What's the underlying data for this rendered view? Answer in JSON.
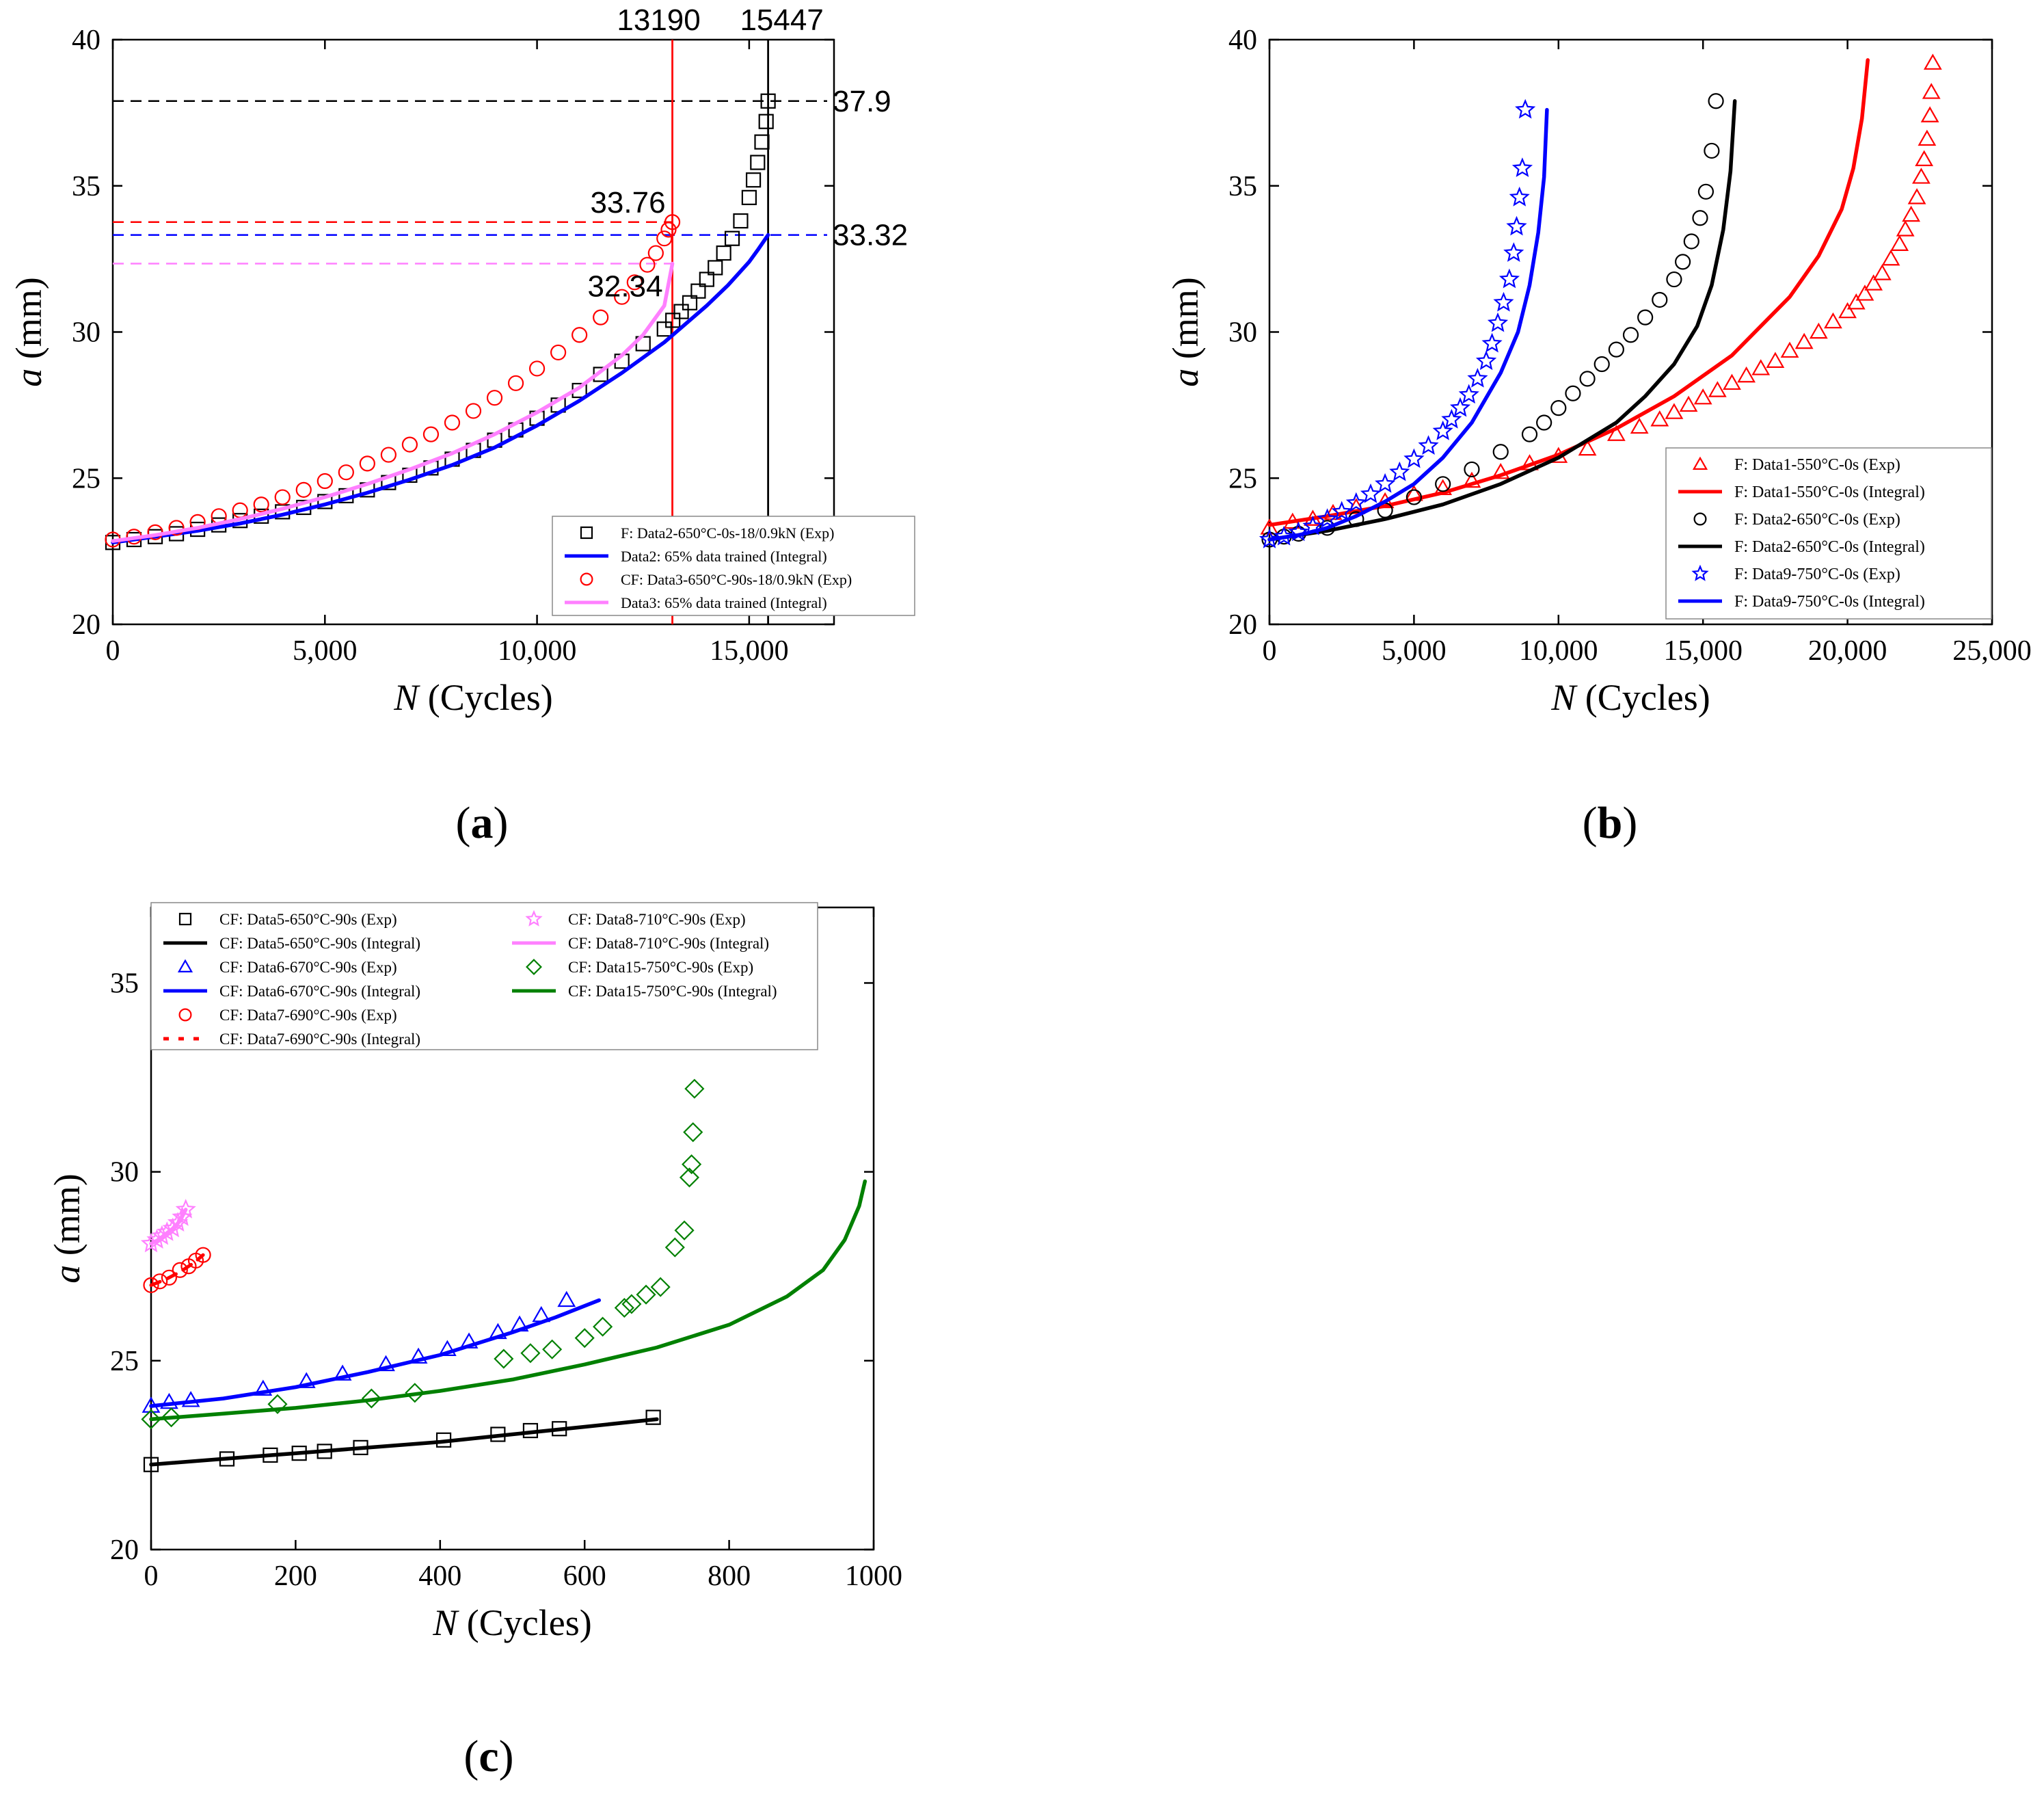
{
  "chart_data": [
    {
      "panel": "(a)",
      "type": "line",
      "xlabel_italic": "N",
      "xlabel_rest": " (Cycles)",
      "ylabel_italic": "a",
      "ylabel_rest": " (mm)",
      "xlim": [
        0,
        17000
      ],
      "ylim": [
        20,
        40
      ],
      "xticks": [
        0,
        5000,
        10000,
        15000
      ],
      "xtick_labels": [
        "0",
        "5,000",
        "10,000",
        "15,000"
      ],
      "yticks": [
        20,
        25,
        30,
        35,
        40
      ],
      "grid": false,
      "legend_position": "bottom-right",
      "series": [
        {
          "name": "F: Data2-650°C-0s-18/0.9kN (Exp)",
          "kind": "marker",
          "marker": "square",
          "color": "#000000",
          "x": [
            0,
            500,
            1000,
            1500,
            2000,
            2500,
            3000,
            3500,
            4000,
            4500,
            5000,
            5500,
            6000,
            6500,
            7000,
            7500,
            8000,
            8500,
            9000,
            9500,
            10000,
            10500,
            11000,
            11500,
            12000,
            12500,
            13000,
            13200,
            13400,
            13600,
            13800,
            14000,
            14200,
            14400,
            14600,
            14800,
            15000,
            15100,
            15200,
            15300,
            15400,
            15447
          ],
          "y": [
            22.8,
            22.9,
            23.0,
            23.1,
            23.25,
            23.4,
            23.55,
            23.7,
            23.85,
            24.0,
            24.2,
            24.4,
            24.6,
            24.85,
            25.1,
            25.35,
            25.65,
            25.95,
            26.3,
            26.65,
            27.05,
            27.5,
            28.0,
            28.55,
            29.0,
            29.6,
            30.1,
            30.4,
            30.7,
            31.0,
            31.4,
            31.8,
            32.2,
            32.7,
            33.2,
            33.8,
            34.6,
            35.2,
            35.8,
            36.5,
            37.2,
            37.9
          ]
        },
        {
          "name": "Data2: 65% data trained (Integral)",
          "kind": "line",
          "color": "#0000ff",
          "x": [
            0,
            1000,
            2000,
            3000,
            4000,
            5000,
            6000,
            7000,
            8000,
            9000,
            10000,
            11000,
            12000,
            13000,
            14000,
            14500,
            15000,
            15200,
            15447
          ],
          "y": [
            22.8,
            23.0,
            23.2,
            23.45,
            23.75,
            24.1,
            24.5,
            24.95,
            25.45,
            26.05,
            26.8,
            27.65,
            28.6,
            29.65,
            30.9,
            31.6,
            32.4,
            32.8,
            33.32
          ]
        },
        {
          "name": "CF: Data3-650°C-90s-18/0.9kN (Exp)",
          "kind": "marker",
          "marker": "circle",
          "color": "#ff0000",
          "x": [
            0,
            500,
            1000,
            1500,
            2000,
            2500,
            3000,
            3500,
            4000,
            4500,
            5000,
            5500,
            6000,
            6500,
            7000,
            7500,
            8000,
            8500,
            9000,
            9500,
            10000,
            10500,
            11000,
            11500,
            12000,
            12300,
            12600,
            12800,
            13000,
            13100,
            13190
          ],
          "y": [
            22.9,
            23.0,
            23.15,
            23.3,
            23.5,
            23.7,
            23.9,
            24.1,
            24.35,
            24.6,
            24.9,
            25.2,
            25.5,
            25.8,
            26.15,
            26.5,
            26.9,
            27.3,
            27.75,
            28.25,
            28.75,
            29.3,
            29.9,
            30.5,
            31.2,
            31.7,
            32.3,
            32.7,
            33.2,
            33.5,
            33.76
          ]
        },
        {
          "name": "Data3: 65% data trained (Integral)",
          "kind": "line",
          "color": "#ff80ff",
          "x": [
            0,
            1000,
            2000,
            3000,
            4000,
            5000,
            6000,
            7000,
            8000,
            9000,
            10000,
            11000,
            12000,
            12500,
            13000,
            13190
          ],
          "y": [
            22.85,
            23.05,
            23.3,
            23.6,
            23.95,
            24.35,
            24.8,
            25.3,
            25.85,
            26.5,
            27.25,
            28.1,
            29.2,
            29.9,
            30.9,
            32.34
          ]
        }
      ],
      "vlines": [
        {
          "x": 13190,
          "label": "13190",
          "color": "#ff0000"
        },
        {
          "x": 15447,
          "label": "15447",
          "color": "#000000"
        }
      ],
      "hlines": [
        {
          "y": 37.9,
          "label": "37.9",
          "color": "#000000"
        },
        {
          "y": 33.76,
          "label": "33.76",
          "color": "#ff0000"
        },
        {
          "y": 33.32,
          "label": "33.32",
          "color": "#0000ff"
        },
        {
          "y": 32.34,
          "label": "32.34",
          "color": "#ff80ff"
        }
      ]
    },
    {
      "panel": "(b)",
      "type": "line",
      "xlabel_italic": "N",
      "xlabel_rest": " (Cycles)",
      "ylabel_italic": "a",
      "ylabel_rest": " (mm)",
      "xlim": [
        0,
        25000
      ],
      "ylim": [
        20,
        40
      ],
      "xticks": [
        0,
        5000,
        10000,
        15000,
        20000,
        25000
      ],
      "xtick_labels": [
        "0",
        "5,000",
        "10,000",
        "15,000",
        "20,000",
        "25,000"
      ],
      "yticks": [
        20,
        25,
        30,
        35,
        40
      ],
      "grid": false,
      "legend_position": "right",
      "series": [
        {
          "name": "F: Data1-550°C-0s (Exp)",
          "kind": "marker",
          "marker": "triangle",
          "color": "#ff0000",
          "x": [
            0,
            800,
            1500,
            2200,
            3000,
            4000,
            5000,
            6000,
            7000,
            8000,
            9000,
            10000,
            11000,
            12000,
            12800,
            13500,
            14000,
            14500,
            15000,
            15500,
            16000,
            16500,
            17000,
            17500,
            18000,
            18500,
            19000,
            19500,
            20000,
            20300,
            20600,
            20900,
            21200,
            21500,
            21800,
            22000,
            22200,
            22400,
            22550,
            22650,
            22750,
            22850,
            22900,
            22950
          ],
          "y": [
            23.3,
            23.5,
            23.6,
            23.8,
            24.0,
            24.2,
            24.45,
            24.65,
            24.9,
            25.2,
            25.5,
            25.75,
            26.0,
            26.5,
            26.75,
            27.0,
            27.25,
            27.5,
            27.75,
            28.0,
            28.25,
            28.5,
            28.75,
            29.0,
            29.35,
            29.65,
            30.0,
            30.35,
            30.7,
            31.0,
            31.3,
            31.65,
            32.0,
            32.5,
            33.0,
            33.5,
            34.0,
            34.6,
            35.3,
            35.9,
            36.6,
            37.4,
            38.2,
            39.2
          ]
        },
        {
          "name": "F: Data1-550°C-0s (Integral)",
          "kind": "line",
          "color": "#ff0000",
          "x": [
            0,
            2000,
            4000,
            6000,
            8000,
            10000,
            12000,
            14000,
            16000,
            18000,
            19000,
            19800,
            20200,
            20500,
            20700
          ],
          "y": [
            23.4,
            23.7,
            24.05,
            24.5,
            25.1,
            25.8,
            26.7,
            27.8,
            29.2,
            31.2,
            32.6,
            34.2,
            35.6,
            37.3,
            39.3
          ]
        },
        {
          "name": "F: Data2-650°C-0s (Exp)",
          "kind": "marker",
          "marker": "circle",
          "color": "#000000",
          "x": [
            0,
            500,
            1000,
            2000,
            3000,
            4000,
            5000,
            6000,
            7000,
            8000,
            9000,
            9500,
            10000,
            10500,
            11000,
            11500,
            12000,
            12500,
            13000,
            13500,
            14000,
            14300,
            14600,
            14900,
            15100,
            15300,
            15447
          ],
          "y": [
            22.9,
            23.0,
            23.1,
            23.3,
            23.6,
            23.9,
            24.35,
            24.8,
            25.3,
            25.9,
            26.5,
            26.9,
            27.4,
            27.9,
            28.4,
            28.9,
            29.4,
            29.9,
            30.5,
            31.1,
            31.8,
            32.4,
            33.1,
            33.9,
            34.8,
            36.2,
            37.9
          ]
        },
        {
          "name": "F: Data2-650°C-0s (Integral)",
          "kind": "line",
          "color": "#000000",
          "x": [
            0,
            2000,
            4000,
            6000,
            8000,
            10000,
            12000,
            13000,
            14000,
            14800,
            15300,
            15700,
            15950,
            16100
          ],
          "y": [
            22.9,
            23.2,
            23.6,
            24.1,
            24.8,
            25.7,
            26.9,
            27.8,
            28.9,
            30.2,
            31.6,
            33.5,
            35.5,
            37.9
          ]
        },
        {
          "name": "F: Data9-750°C-0s (Exp)",
          "kind": "marker",
          "marker": "star",
          "color": "#0000ff",
          "x": [
            0,
            500,
            1000,
            1500,
            2000,
            2500,
            3000,
            3500,
            4000,
            4500,
            5000,
            5500,
            6000,
            6300,
            6600,
            6900,
            7200,
            7500,
            7700,
            7900,
            8100,
            8300,
            8450,
            8550,
            8650,
            8750,
            8850
          ],
          "y": [
            22.9,
            23.0,
            23.15,
            23.35,
            23.6,
            23.85,
            24.15,
            24.45,
            24.8,
            25.2,
            25.65,
            26.1,
            26.6,
            27.0,
            27.4,
            27.85,
            28.4,
            29.0,
            29.6,
            30.3,
            31.0,
            31.8,
            32.7,
            33.6,
            34.6,
            35.6,
            37.6
          ]
        },
        {
          "name": "F: Data9-750°C-0s (Integral)",
          "kind": "line",
          "color": "#0000ff",
          "x": [
            0,
            1000,
            2000,
            3000,
            4000,
            5000,
            6000,
            7000,
            8000,
            8600,
            9000,
            9300,
            9500,
            9600
          ],
          "y": [
            22.9,
            23.05,
            23.3,
            23.7,
            24.2,
            24.8,
            25.7,
            26.9,
            28.6,
            30.0,
            31.6,
            33.4,
            35.3,
            37.6
          ]
        }
      ]
    },
    {
      "panel": "(c)",
      "type": "line",
      "xlabel_italic": "N",
      "xlabel_rest": " (Cycles)",
      "ylabel_italic": "a",
      "ylabel_rest": " (mm)",
      "xlim": [
        0,
        1000
      ],
      "ylim": [
        20,
        37
      ],
      "xticks": [
        0,
        200,
        400,
        600,
        800,
        1000
      ],
      "xtick_labels": [
        "0",
        "200",
        "400",
        "600",
        "800",
        "1000"
      ],
      "yticks": [
        20,
        25,
        30,
        35
      ],
      "grid": false,
      "legend_position": "top",
      "series": [
        {
          "name": "CF: Data5-650°C-90s (Exp)",
          "kind": "marker",
          "marker": "square",
          "color": "#000000",
          "x": [
            0,
            105,
            165,
            205,
            240,
            290,
            405,
            480,
            525,
            565,
            695
          ],
          "y": [
            22.25,
            22.4,
            22.5,
            22.55,
            22.6,
            22.7,
            22.9,
            23.05,
            23.15,
            23.2,
            23.5
          ]
        },
        {
          "name": "CF: Data5-650°C-90s (Integral)",
          "kind": "line",
          "color": "#000000",
          "x": [
            0,
            100,
            200,
            300,
            400,
            500,
            600,
            700
          ],
          "y": [
            22.25,
            22.4,
            22.55,
            22.7,
            22.85,
            23.05,
            23.25,
            23.45
          ]
        },
        {
          "name": "CF: Data6-670°C-90s (Exp)",
          "kind": "marker",
          "marker": "triangle",
          "color": "#0000ff",
          "x": [
            0,
            25,
            55,
            155,
            215,
            265,
            325,
            370,
            410,
            440,
            480,
            510,
            540,
            575
          ],
          "y": [
            23.8,
            23.9,
            23.95,
            24.25,
            24.45,
            24.65,
            24.9,
            25.1,
            25.3,
            25.5,
            25.75,
            25.95,
            26.2,
            26.6
          ]
        },
        {
          "name": "CF: Data6-670°C-90s (Integral)",
          "kind": "line",
          "color": "#0000ff",
          "x": [
            0,
            100,
            200,
            300,
            400,
            500,
            560,
            620
          ],
          "y": [
            23.8,
            24.0,
            24.3,
            24.7,
            25.15,
            25.75,
            26.15,
            26.6
          ]
        },
        {
          "name": "CF: Data7-690°C-90s (Exp)",
          "kind": "marker",
          "marker": "circle",
          "color": "#ff0000",
          "x": [
            0,
            12,
            25,
            40,
            52,
            62,
            72
          ],
          "y": [
            27.0,
            27.1,
            27.2,
            27.4,
            27.5,
            27.65,
            27.8
          ]
        },
        {
          "name": "CF: Data7-690°C-90s (Integral)",
          "kind": "dashed-line",
          "color": "#ff0000",
          "x": [
            0,
            20,
            40,
            60,
            72
          ],
          "y": [
            27.0,
            27.15,
            27.35,
            27.6,
            27.8
          ]
        },
        {
          "name": "CF: Data8-710°C-90s (Exp)",
          "kind": "marker",
          "marker": "star",
          "color": "#ff80ff",
          "x": [
            0,
            8,
            15,
            22,
            30,
            37,
            43,
            48
          ],
          "y": [
            28.1,
            28.2,
            28.3,
            28.4,
            28.5,
            28.65,
            28.8,
            29.0
          ]
        },
        {
          "name": "CF: Data8-710°C-90s (Integral)",
          "kind": "line",
          "color": "#ff80ff",
          "x": [
            0,
            10,
            20,
            30,
            40,
            48
          ],
          "y": [
            28.1,
            28.2,
            28.35,
            28.5,
            28.7,
            29.0
          ]
        },
        {
          "name": "CF: Data15-750°C-90s (Exp)",
          "kind": "marker",
          "marker": "diamond",
          "color": "#008000",
          "x": [
            0,
            28,
            175,
            305,
            365,
            488,
            525,
            555,
            600,
            625,
            655,
            665,
            685,
            705,
            725,
            738,
            745,
            748,
            750,
            752
          ],
          "y": [
            23.45,
            23.5,
            23.85,
            24.0,
            24.15,
            25.05,
            25.2,
            25.3,
            25.6,
            25.9,
            26.4,
            26.5,
            26.75,
            26.95,
            28.0,
            28.45,
            29.85,
            30.2,
            31.05,
            32.2
          ]
        },
        {
          "name": "CF: Data15-750°C-90s (Integral)",
          "kind": "line",
          "color": "#008000",
          "x": [
            0,
            100,
            200,
            300,
            400,
            500,
            600,
            700,
            800,
            880,
            930,
            960,
            980,
            988
          ],
          "y": [
            23.45,
            23.6,
            23.75,
            23.95,
            24.2,
            24.5,
            24.9,
            25.35,
            25.95,
            26.7,
            27.4,
            28.2,
            29.1,
            29.75
          ]
        }
      ]
    }
  ]
}
